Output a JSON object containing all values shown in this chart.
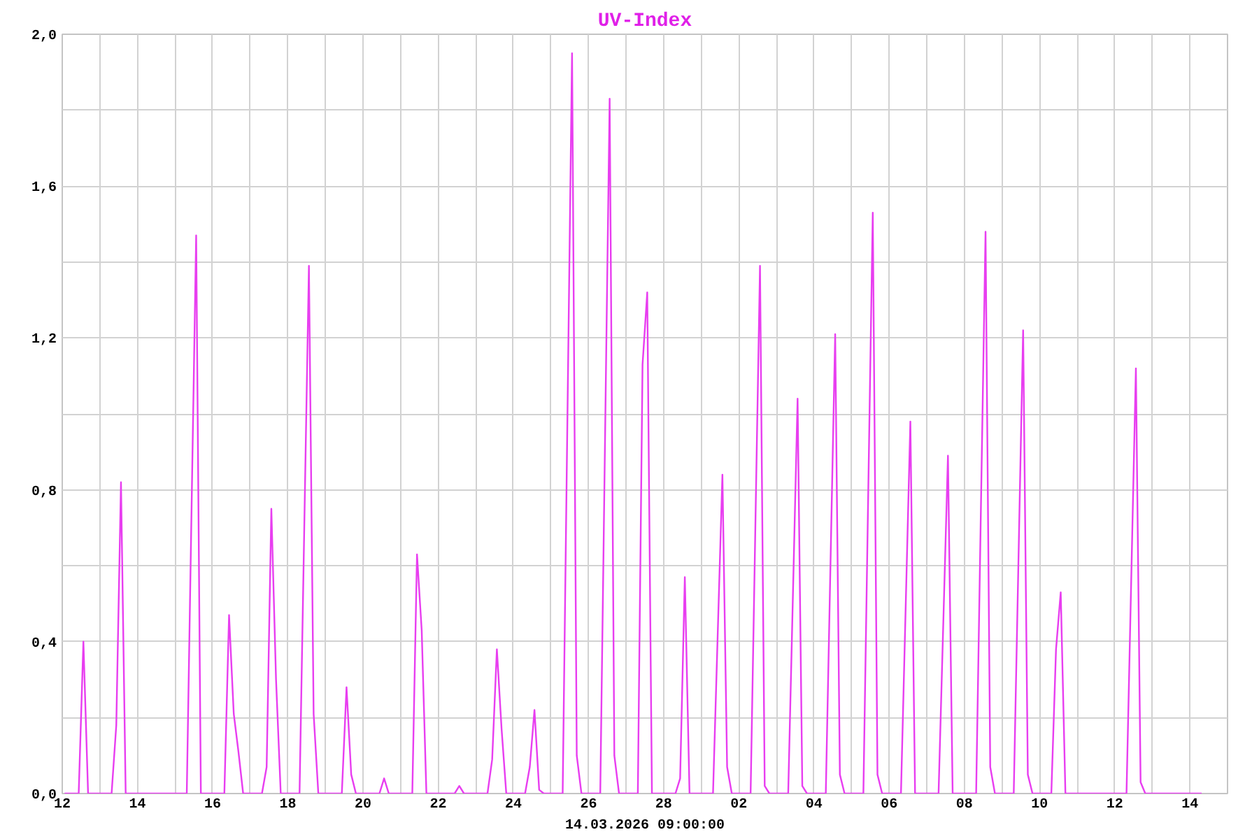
{
  "chart_data": {
    "type": "line",
    "title": "UV-Index",
    "xlabel": "14.03.2026 09:00:00",
    "xlim": [
      "2026-02-12",
      "2026-03-15"
    ],
    "ylim": [
      0,
      2
    ],
    "xticks": [
      {
        "value": "2026-02-12",
        "label": "12"
      },
      {
        "value": "2026-02-13",
        "label": null
      },
      {
        "value": "2026-02-14",
        "label": "14"
      },
      {
        "value": "2026-02-15",
        "label": null
      },
      {
        "value": "2026-02-16",
        "label": "16"
      },
      {
        "value": "2026-02-17",
        "label": null
      },
      {
        "value": "2026-02-18",
        "label": "18"
      },
      {
        "value": "2026-02-19",
        "label": null
      },
      {
        "value": "2026-02-20",
        "label": "20"
      },
      {
        "value": "2026-02-21",
        "label": null
      },
      {
        "value": "2026-02-22",
        "label": "22"
      },
      {
        "value": "2026-02-23",
        "label": null
      },
      {
        "value": "2026-02-24",
        "label": "24"
      },
      {
        "value": "2026-02-25",
        "label": null
      },
      {
        "value": "2026-02-26",
        "label": "26"
      },
      {
        "value": "2026-02-27",
        "label": null
      },
      {
        "value": "2026-02-28",
        "label": "28"
      },
      {
        "value": "2026-03-01",
        "label": null
      },
      {
        "value": "2026-03-02",
        "label": "02"
      },
      {
        "value": "2026-03-03",
        "label": null
      },
      {
        "value": "2026-03-04",
        "label": "04"
      },
      {
        "value": "2026-03-05",
        "label": null
      },
      {
        "value": "2026-03-06",
        "label": "06"
      },
      {
        "value": "2026-03-07",
        "label": null
      },
      {
        "value": "2026-03-08",
        "label": "08"
      },
      {
        "value": "2026-03-09",
        "label": null
      },
      {
        "value": "2026-03-10",
        "label": "10"
      },
      {
        "value": "2026-03-11",
        "label": null
      },
      {
        "value": "2026-03-12",
        "label": "12"
      },
      {
        "value": "2026-03-13",
        "label": null
      },
      {
        "value": "2026-03-14",
        "label": "14"
      }
    ],
    "yticks": [
      {
        "value": 0,
        "label": "0,0"
      },
      {
        "value": 0.2,
        "label": null
      },
      {
        "value": 0.4,
        "label": "0,4"
      },
      {
        "value": 0.6,
        "label": null
      },
      {
        "value": 0.8,
        "label": "0,8"
      },
      {
        "value": 1.0,
        "label": null
      },
      {
        "value": 1.2,
        "label": "1,2"
      },
      {
        "value": 1.4,
        "label": null
      },
      {
        "value": 1.6,
        "label": "1,6"
      },
      {
        "value": 1.8,
        "label": null
      },
      {
        "value": 2.0,
        "label": "2,0"
      }
    ],
    "grid": true,
    "series": [
      {
        "color": "#e83ef0",
        "x": [
          "2026-02-12T01:30",
          "2026-02-12T10:30",
          "2026-02-12T13:30",
          "2026-02-12T16:30",
          "2026-02-13T07:30",
          "2026-02-13T10:30",
          "2026-02-13T13:30",
          "2026-02-13T16:30",
          "2026-02-15T07:30",
          "2026-02-15T13:30",
          "2026-02-15T16:30",
          "2026-02-16T07:30",
          "2026-02-16T10:30",
          "2026-02-16T13:30",
          "2026-02-16T16:30",
          "2026-02-16T19:30",
          "2026-02-17T07:30",
          "2026-02-17T10:30",
          "2026-02-17T13:30",
          "2026-02-17T16:30",
          "2026-02-17T19:30",
          "2026-02-18T07:30",
          "2026-02-18T13:30",
          "2026-02-18T16:30",
          "2026-02-18T19:30",
          "2026-02-19T10:30",
          "2026-02-19T13:30",
          "2026-02-19T16:30",
          "2026-02-19T19:30",
          "2026-02-20T10:30",
          "2026-02-20T13:30",
          "2026-02-20T16:30",
          "2026-02-21T07:30",
          "2026-02-21T10:30",
          "2026-02-21T13:30",
          "2026-02-21T16:30",
          "2026-02-22T10:30",
          "2026-02-22T13:30",
          "2026-02-22T16:30",
          "2026-02-23T07:30",
          "2026-02-23T10:30",
          "2026-02-23T13:30",
          "2026-02-23T16:30",
          "2026-02-23T19:30",
          "2026-02-24T07:30",
          "2026-02-24T10:30",
          "2026-02-24T13:30",
          "2026-02-24T16:30",
          "2026-02-24T19:30",
          "2026-02-25T07:30",
          "2026-02-25T13:30",
          "2026-02-25T16:30",
          "2026-02-25T19:30",
          "2026-02-26T07:30",
          "2026-02-26T13:30",
          "2026-02-26T16:30",
          "2026-02-26T19:30",
          "2026-02-27T07:30",
          "2026-02-27T10:30",
          "2026-02-27T13:30",
          "2026-02-27T16:30",
          "2026-02-28T07:30",
          "2026-02-28T10:30",
          "2026-02-28T13:30",
          "2026-02-28T16:30",
          "2026-03-01T07:30",
          "2026-03-01T13:30",
          "2026-03-01T16:30",
          "2026-03-01T19:30",
          "2026-03-02T07:30",
          "2026-03-02T13:30",
          "2026-03-02T16:30",
          "2026-03-02T19:30",
          "2026-03-03T07:30",
          "2026-03-03T13:30",
          "2026-03-03T16:30",
          "2026-03-03T19:30",
          "2026-03-04T07:30",
          "2026-03-04T13:30",
          "2026-03-04T16:30",
          "2026-03-04T19:30",
          "2026-03-05T07:30",
          "2026-03-05T13:30",
          "2026-03-05T16:30",
          "2026-03-05T19:30",
          "2026-03-06T07:30",
          "2026-03-06T13:30",
          "2026-03-06T16:30",
          "2026-03-07T07:30",
          "2026-03-07T13:30",
          "2026-03-07T16:30",
          "2026-03-08T07:30",
          "2026-03-08T13:30",
          "2026-03-08T16:30",
          "2026-03-08T19:30",
          "2026-03-09T07:30",
          "2026-03-09T13:30",
          "2026-03-09T16:30",
          "2026-03-09T19:30",
          "2026-03-10T07:30",
          "2026-03-10T10:30",
          "2026-03-10T13:30",
          "2026-03-10T16:30",
          "2026-03-12T07:30",
          "2026-03-12T13:30",
          "2026-03-12T16:30",
          "2026-03-12T19:30",
          "2026-03-14T07:30"
        ],
        "values": [
          0,
          0,
          0.4,
          0,
          0,
          0.18,
          0.82,
          0,
          0,
          1.47,
          0,
          0,
          0.47,
          0.21,
          0.11,
          0,
          0,
          0.07,
          0.75,
          0.3,
          0,
          0,
          1.39,
          0.21,
          0,
          0,
          0.28,
          0.05,
          0,
          0,
          0.04,
          0,
          0,
          0.63,
          0.43,
          0,
          0,
          0.02,
          0,
          0,
          0.09,
          0.38,
          0.17,
          0,
          0,
          0.07,
          0.22,
          0.01,
          0,
          0,
          1.95,
          0.1,
          0,
          0,
          1.83,
          0.1,
          0,
          0,
          1.13,
          1.32,
          0,
          0,
          0.04,
          0.57,
          0,
          0,
          0.84,
          0.07,
          0,
          0,
          1.39,
          0.02,
          0,
          0,
          1.04,
          0.02,
          0,
          0,
          1.21,
          0.05,
          0,
          0,
          1.53,
          0.05,
          0,
          0,
          0.98,
          0,
          0,
          0.89,
          0,
          0,
          1.48,
          0.07,
          0,
          0,
          1.22,
          0.05,
          0,
          0,
          0.38,
          0.53,
          0,
          0,
          1.12,
          0.03,
          0,
          0
        ]
      }
    ]
  }
}
